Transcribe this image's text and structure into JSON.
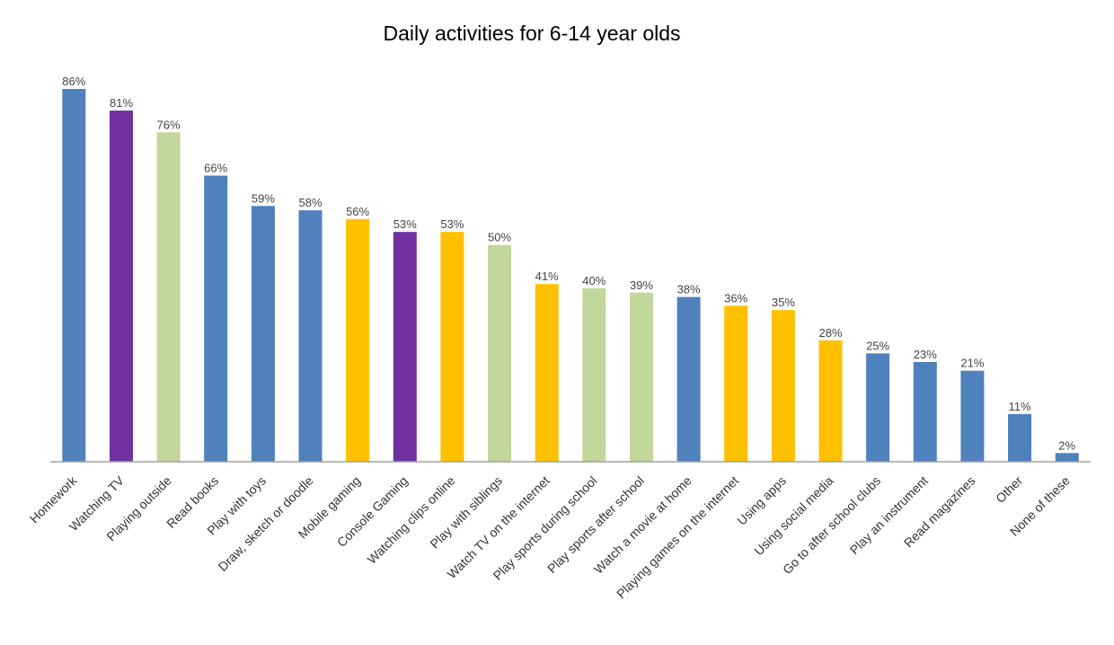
{
  "colors": {
    "blue": "#4f81bd",
    "purple": "#7030a0",
    "green": "#c3d69b",
    "yellow": "#ffc000",
    "axis": "#a0a0a0"
  },
  "chart_data": {
    "type": "bar",
    "title": "Daily activities for 6-14 year olds",
    "xlabel": "",
    "ylabel": "",
    "ylim": [
      0,
      90
    ],
    "grid": false,
    "categories": [
      "Homework",
      "Watching TV",
      "Playing outside",
      "Read books",
      "Play with toys",
      "Draw, sketch or doodle",
      "Mobile gaming",
      "Console Gaming",
      "Watching clips online",
      "Play with siblings",
      "Watch TV on the internet",
      "Play sports during school",
      "Play sports after school",
      "Watch a movie at home",
      "Playing games on the internet",
      "Using apps",
      "Using social media",
      "Go to after school clubs",
      "Play an instrument",
      "Read magazines",
      "Other",
      "None of these"
    ],
    "values": [
      86,
      81,
      76,
      66,
      59,
      58,
      56,
      53,
      53,
      50,
      41,
      40,
      39,
      38,
      36,
      35,
      28,
      25,
      23,
      21,
      11,
      2
    ],
    "labels": [
      "86%",
      "81%",
      "76%",
      "66%",
      "59%",
      "58%",
      "56%",
      "53%",
      "53%",
      "50%",
      "41%",
      "40%",
      "39%",
      "38%",
      "36%",
      "35%",
      "28%",
      "25%",
      "23%",
      "21%",
      "11%",
      "2%"
    ],
    "bar_colors": [
      "blue",
      "purple",
      "green",
      "blue",
      "blue",
      "blue",
      "yellow",
      "purple",
      "yellow",
      "green",
      "yellow",
      "green",
      "green",
      "blue",
      "yellow",
      "yellow",
      "yellow",
      "blue",
      "blue",
      "blue",
      "blue",
      "blue"
    ]
  }
}
